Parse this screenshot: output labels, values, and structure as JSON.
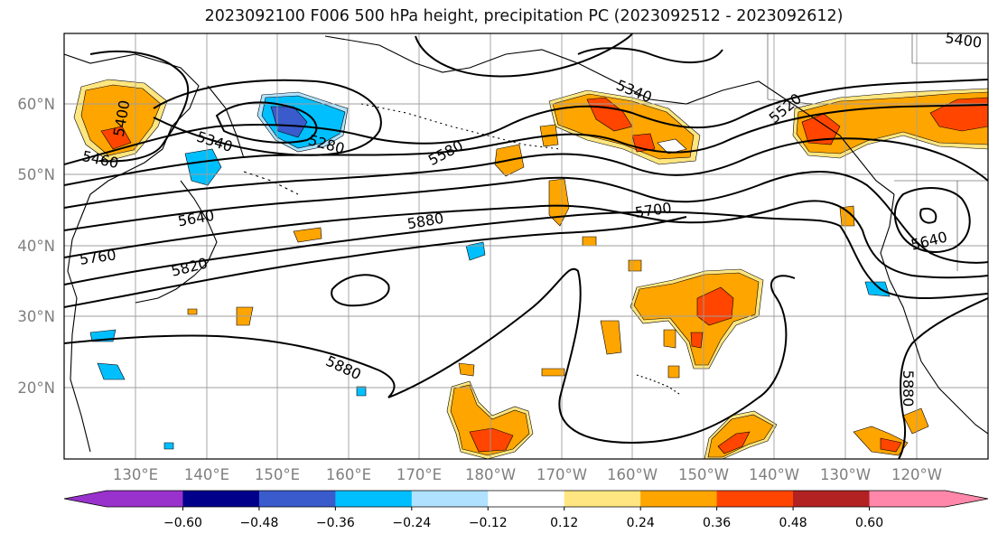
{
  "title": "2023092100 F006 500 hPa height, precipitation PC (2023092512 - 2023092612)",
  "lat_labels": [
    "60°N",
    "50°N",
    "40°N",
    "30°N",
    "20°N"
  ],
  "lon_labels": [
    "130°E",
    "140°E",
    "150°E",
    "160°E",
    "170°E",
    "180°W",
    "170°W",
    "160°W",
    "150°W",
    "140°W",
    "130°W",
    "120°W"
  ],
  "contour_labels": [
    "5400",
    "5340",
    "5280",
    "5460",
    "5640",
    "5760",
    "5820",
    "5580",
    "5880",
    "5340",
    "5520",
    "5700",
    "5400",
    "5640",
    "5880",
    "5880"
  ],
  "colorbar": {
    "ticks": [
      "−0.60",
      "−0.48",
      "−0.36",
      "−0.24",
      "−0.12",
      "0.12",
      "0.24",
      "0.36",
      "0.48",
      "0.60"
    ],
    "colors": [
      "#9932cc",
      "#00008b",
      "#3a5bcc",
      "#00bfff",
      "#b0e2ff",
      "#ffffff",
      "#ffe680",
      "#ffa500",
      "#ff4500",
      "#b22222",
      "#ff88aa",
      "#ff88aa"
    ]
  }
}
